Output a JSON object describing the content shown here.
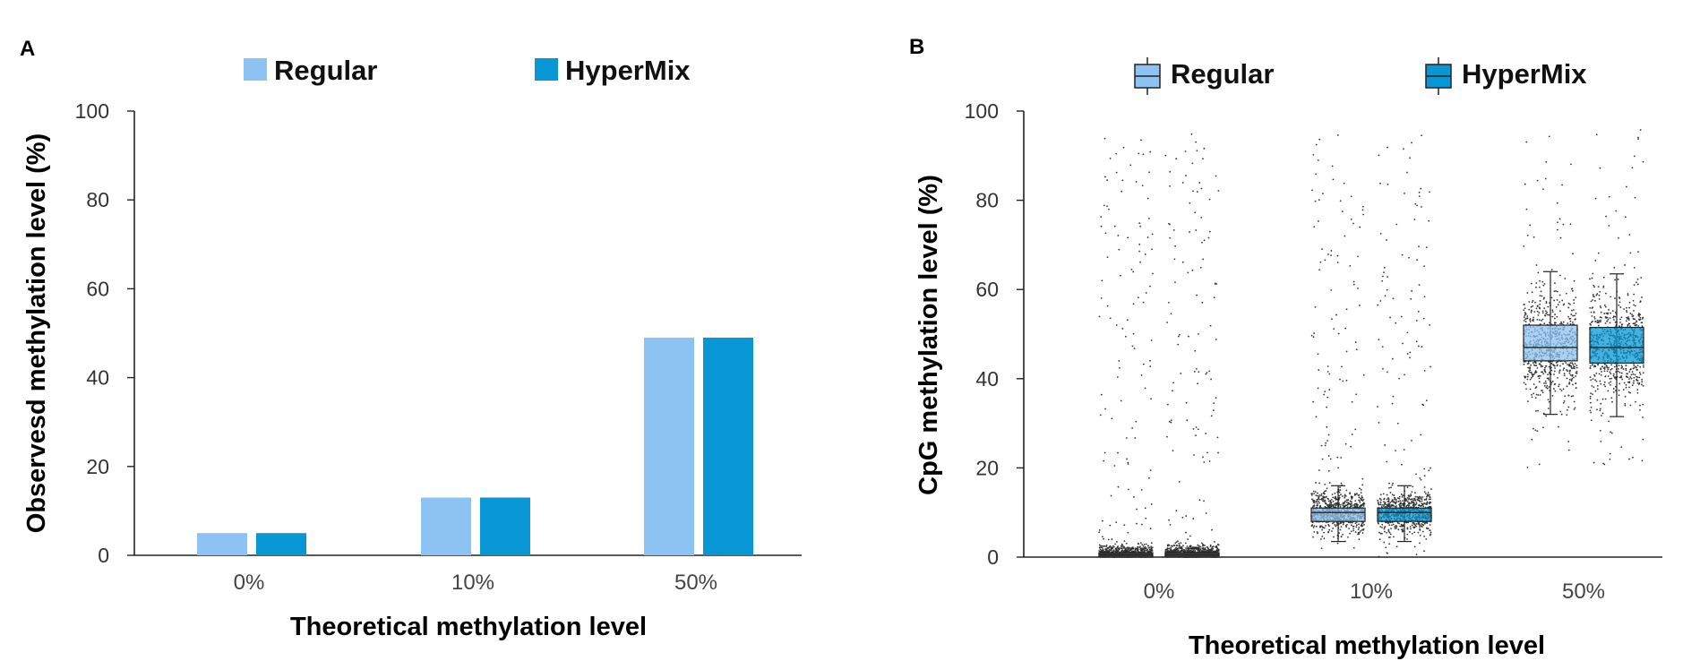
{
  "chart_data": [
    {
      "panel": "A",
      "type": "bar",
      "categories": [
        "0%",
        "10%",
        "50%"
      ],
      "series": [
        {
          "name": "Regular",
          "values": [
            5,
            13,
            49
          ],
          "color": "#8dc3f2"
        },
        {
          "name": "HyperMix",
          "values": [
            5,
            13,
            49
          ],
          "color": "#0896d4"
        }
      ],
      "xlabel": "Theoretical methylation level",
      "ylabel": "Observesd methylation level (%)",
      "ylim": [
        0,
        100
      ],
      "yticks": [
        "0",
        "20",
        "40",
        "60",
        "80",
        "100"
      ],
      "legend_position": "top",
      "grid": false
    },
    {
      "panel": "B",
      "type": "box",
      "categories": [
        "0%",
        "10%",
        "50%"
      ],
      "series": [
        {
          "name": "Regular",
          "color": "#8dc3f2",
          "boxes": [
            {
              "whisker_low": 0,
              "q1": 0,
              "median": 0.5,
              "q3": 1,
              "whisker_high": 2
            },
            {
              "whisker_low": 3.5,
              "q1": 8,
              "median": 10,
              "q3": 11,
              "whisker_high": 16
            },
            {
              "whisker_low": 32,
              "q1": 44,
              "median": 47,
              "q3": 52,
              "whisker_high": 64
            }
          ]
        },
        {
          "name": "HyperMix",
          "color": "#0896d4",
          "boxes": [
            {
              "whisker_low": 0,
              "q1": 0,
              "median": 0.5,
              "q3": 1,
              "whisker_high": 2
            },
            {
              "whisker_low": 3.5,
              "q1": 8,
              "median": 10,
              "q3": 11,
              "whisker_high": 16
            },
            {
              "whisker_low": 31.5,
              "q1": 43.5,
              "median": 47,
              "q3": 51.5,
              "whisker_high": 63.5
            }
          ]
        }
      ],
      "xlabel": "Theoretical methylation level",
      "ylabel": "CpG methylation level (%)",
      "ylim": [
        0,
        100
      ],
      "yticks": [
        "0",
        "20",
        "40",
        "60",
        "80",
        "100"
      ],
      "legend_position": "top",
      "grid": false,
      "overlay": "jittered individual CpG points"
    }
  ]
}
